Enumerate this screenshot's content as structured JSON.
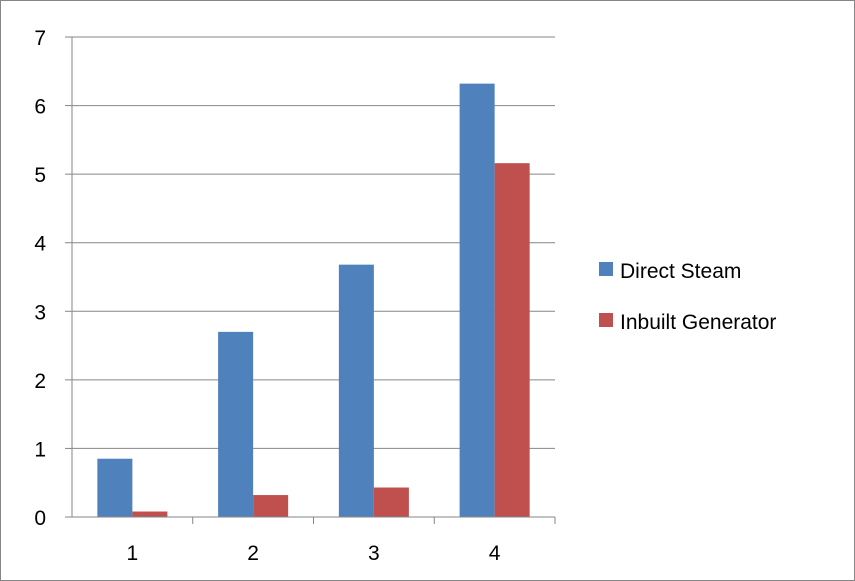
{
  "chart_data": {
    "type": "bar",
    "categories": [
      "1",
      "2",
      "3",
      "4"
    ],
    "series": [
      {
        "name": "Direct Steam",
        "color": "#4F81BD",
        "values": [
          0.85,
          2.7,
          3.68,
          6.32
        ]
      },
      {
        "name": "Inbuilt Generator",
        "color": "#C0504D",
        "values": [
          0.08,
          0.32,
          0.43,
          5.16
        ]
      }
    ],
    "ylim": [
      0,
      7
    ],
    "yticks": [
      "0",
      "1",
      "2",
      "3",
      "4",
      "5",
      "6",
      "7"
    ],
    "grid": true,
    "legend": "right"
  }
}
